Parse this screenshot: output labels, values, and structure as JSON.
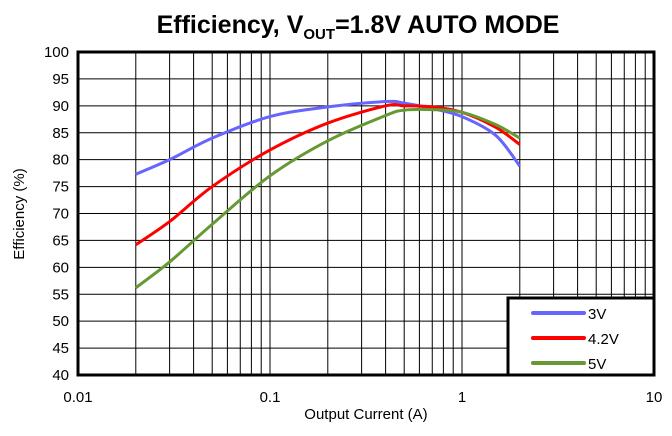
{
  "chart_data": {
    "type": "line",
    "title": {
      "main": "Efficiency, V",
      "sub": "OUT",
      "rest": "=1.8V AUTO MODE"
    },
    "xlabel": "Output Current (A)",
    "ylabel": "Efficiency (%)",
    "xscale": "log",
    "xlim": [
      0.01,
      10
    ],
    "ylim": [
      40,
      100
    ],
    "xticks": [
      "0.01",
      "0.1",
      "1",
      "10"
    ],
    "yticks": [
      "40",
      "45",
      "50",
      "55",
      "60",
      "65",
      "70",
      "75",
      "80",
      "85",
      "90",
      "95",
      "100"
    ],
    "grid": true,
    "legend_position": "bottom-right",
    "x": [
      0.02,
      0.03,
      0.05,
      0.1,
      0.2,
      0.4,
      0.5,
      0.7,
      1,
      1.5,
      2
    ],
    "series": [
      {
        "name": "3V",
        "color": "#6666ff",
        "values": [
          77.3,
          80,
          84,
          88,
          89.8,
          90.8,
          90.5,
          89.5,
          88,
          84.5,
          78.8
        ]
      },
      {
        "name": "4.2V",
        "color": "#ff0000",
        "values": [
          64.2,
          68.5,
          75,
          81.8,
          86.8,
          90,
          90,
          89.8,
          88.8,
          86,
          82.8
        ]
      },
      {
        "name": "5V",
        "color": "#669933",
        "values": [
          56.2,
          61,
          68,
          77,
          83.5,
          88.2,
          89.2,
          89.3,
          88.8,
          86.5,
          84
        ]
      }
    ]
  }
}
